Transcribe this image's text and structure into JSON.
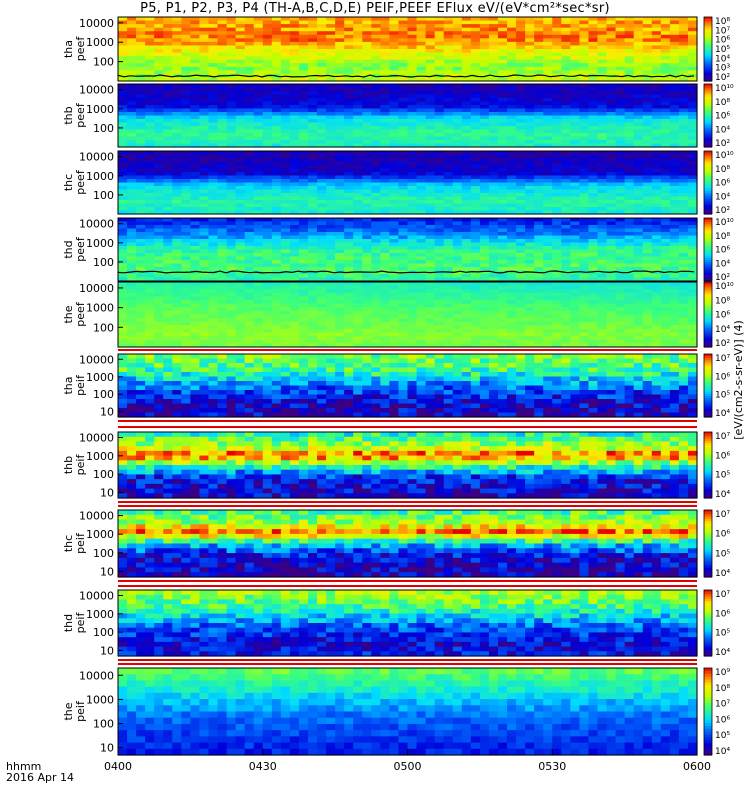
{
  "title": "P5, P1, P2, P3, P4 (TH-A,B,C,D,E) PEIF,PEEF EFlux eV/(eV*cm²*sec*sr)",
  "colorbar_units_label": "[eV/(cm2-s-sr-eV)] (4)",
  "time_axis": {
    "row_labels": [
      "hhmm",
      "2016 Apr 14"
    ],
    "ticks": [
      "0400",
      "0430",
      "0500",
      "0530",
      "0600"
    ]
  },
  "chart_data": {
    "type": "heatmap",
    "title": "P5, P1, P2, P3, P4 (TH-A,B,C,D,E) PEIF,PEEF EFlux eV/(eV*cm²*sec*sr)",
    "x_range": [
      "0400",
      "0600"
    ],
    "date": "2016 Apr 14",
    "panels": [
      {
        "ylabel": [
          "tha",
          "peef"
        ],
        "y_ticks": [
          "10000",
          "1000",
          "100"
        ],
        "y_log": true,
        "y_range": [
          10,
          20000
        ],
        "cbar_ticks": [
          "10⁸",
          "10⁷",
          "10⁶",
          "10⁵",
          "10⁴",
          "10³",
          "10²"
        ],
        "dominant": "red-orange upper band, yellow-green lower"
      },
      {
        "ylabel": [
          "thb",
          "peef"
        ],
        "y_ticks": [
          "10000",
          "1000",
          "100"
        ],
        "y_log": true,
        "y_range": [
          10,
          20000
        ],
        "cbar_ticks": [
          "10¹⁰",
          "10⁸",
          "10⁶",
          "10⁴",
          "10²"
        ],
        "dominant": "dark blue top, cyan-green low energies"
      },
      {
        "ylabel": [
          "thc",
          "peef"
        ],
        "y_ticks": [
          "10000",
          "1000",
          "100"
        ],
        "y_log": true,
        "y_range": [
          10,
          20000
        ],
        "cbar_ticks": [
          "10¹⁰",
          "10⁸",
          "10⁶",
          "10⁴",
          "10²"
        ],
        "dominant": "dark blue top, cyan-green low energies"
      },
      {
        "ylabel": [
          "thd",
          "peef"
        ],
        "y_ticks": [
          "10000",
          "1000",
          "100"
        ],
        "y_log": true,
        "y_range": [
          10,
          20000
        ],
        "cbar_ticks": [
          "10¹⁰",
          "10⁸",
          "10⁶",
          "10⁴",
          "10²"
        ],
        "dominant": "blue top, green middle"
      },
      {
        "ylabel": [
          "the",
          "peef"
        ],
        "y_ticks": [
          "10000",
          "1000",
          "100"
        ],
        "y_log": true,
        "y_range": [
          10,
          20000
        ],
        "cbar_ticks": [
          "10¹⁰",
          "10⁸",
          "10⁶",
          "10⁴",
          "10²"
        ],
        "dominant": "green-yellow"
      },
      {
        "ylabel": [
          "tha",
          "peif"
        ],
        "y_ticks": [
          "10000",
          "1000",
          "100",
          "10"
        ],
        "y_log": true,
        "y_range": [
          5,
          20000
        ],
        "cbar_ticks": [
          "10⁷",
          "10⁶",
          "10⁵",
          "10⁴"
        ],
        "dominant": "yellow-green top, dark blue bottom"
      },
      {
        "ylabel": [
          "thb",
          "peif"
        ],
        "y_ticks": [
          "10000",
          "1000",
          "100",
          "10"
        ],
        "y_log": true,
        "y_range": [
          5,
          20000
        ],
        "cbar_ticks": [
          "10⁷",
          "10⁶",
          "10⁵",
          "10⁴"
        ],
        "dominant": "red band near 1000 eV, dark blue bottom"
      },
      {
        "ylabel": [
          "thc",
          "peif"
        ],
        "y_ticks": [
          "10000",
          "1000",
          "100",
          "10"
        ],
        "y_log": true,
        "y_range": [
          5,
          20000
        ],
        "cbar_ticks": [
          "10⁷",
          "10⁶",
          "10⁵",
          "10⁴"
        ],
        "dominant": "red band near 1000 eV, dark blue bottom"
      },
      {
        "ylabel": [
          "thd",
          "peif"
        ],
        "y_ticks": [
          "10000",
          "1000",
          "100",
          "10"
        ],
        "y_log": true,
        "y_range": [
          5,
          20000
        ],
        "cbar_ticks": [
          "10⁷",
          "10⁶",
          "10⁵",
          "10⁴"
        ],
        "dominant": "yellow-green top, blue bottom"
      },
      {
        "ylabel": [
          "the",
          "peif"
        ],
        "y_ticks": [
          "10000",
          "1000",
          "100",
          "10"
        ],
        "y_log": true,
        "y_range": [
          5,
          20000
        ],
        "cbar_ticks": [
          "10⁹",
          "10⁸",
          "10⁷",
          "10⁶",
          "10⁵",
          "10⁴"
        ],
        "dominant": "green top, blue bottom"
      }
    ]
  }
}
